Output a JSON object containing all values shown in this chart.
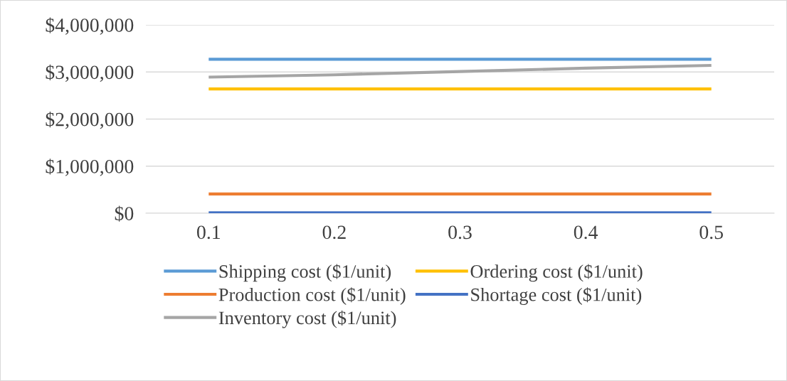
{
  "chart_data": {
    "type": "line",
    "categories": [
      "0.1",
      "0.2",
      "0.3",
      "0.4",
      "0.5"
    ],
    "series": [
      {
        "name": "Shipping cost ($1/unit)",
        "color": "#5b9bd5",
        "values": [
          3270000,
          3270000,
          3270000,
          3270000,
          3270000
        ]
      },
      {
        "name": "Production cost ($1/unit)",
        "color": "#ed7d31",
        "values": [
          410000,
          410000,
          410000,
          410000,
          410000
        ]
      },
      {
        "name": "Inventory cost ($1/unit)",
        "color": "#a5a5a5",
        "values": [
          2890000,
          2940000,
          3010000,
          3080000,
          3140000
        ]
      },
      {
        "name": "Ordering cost ($1/unit)",
        "color": "#ffc000",
        "values": [
          2640000,
          2640000,
          2640000,
          2640000,
          2640000
        ]
      },
      {
        "name": "Shortage cost ($1/unit)",
        "color": "#4472c4",
        "values": [
          10000,
          10000,
          10000,
          10000,
          10000
        ]
      }
    ],
    "ylim": [
      0,
      4000000
    ],
    "yticks": [
      {
        "value": 0,
        "label": "$0"
      },
      {
        "value": 1000000,
        "label": "$1,000,000"
      },
      {
        "value": 2000000,
        "label": "$2,000,000"
      },
      {
        "value": 3000000,
        "label": "$3,000,000"
      },
      {
        "value": 4000000,
        "label": "$4,000,000"
      }
    ],
    "grid": "y",
    "legend": "bottom",
    "marker": "none",
    "line_style": "solid"
  }
}
